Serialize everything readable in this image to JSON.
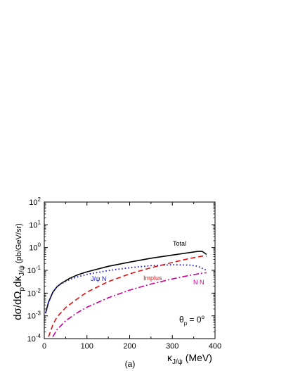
{
  "chart_data": {
    "type": "line",
    "xlabel": {
      "main": "κ",
      "sub": "J/ψ",
      "tail": " (MeV)"
    },
    "ylabel": {
      "main": "dσ/dΩ",
      "sub1": "p",
      "mid": "dκ",
      "sub2": "J/ψ",
      "tail": " (pb/GeV/sr)"
    },
    "xlim": [
      0,
      400
    ],
    "ylim": [
      0.0001,
      100
    ],
    "yscale": "log",
    "x_ticks": [
      0,
      100,
      200,
      300,
      400
    ],
    "y_ticks": [
      {
        "value": 100,
        "base": "10",
        "exp": "2"
      },
      {
        "value": 10,
        "base": "10",
        "exp": "1"
      },
      {
        "value": 1,
        "base": "10",
        "exp": "0"
      },
      {
        "value": 0.1,
        "base": "10",
        "exp": "-1"
      },
      {
        "value": 0.01,
        "base": "10",
        "exp": "-2"
      },
      {
        "value": 0.001,
        "base": "10",
        "exp": "-3"
      },
      {
        "value": 0.0001,
        "base": "10",
        "exp": "-4"
      }
    ],
    "series": [
      {
        "name": "Total",
        "color": "#000000",
        "style": "solid",
        "x": [
          3,
          10,
          20,
          30,
          40,
          60,
          80,
          100,
          150,
          200,
          250,
          300,
          340,
          360,
          370,
          380
        ],
        "y": [
          0.0013,
          0.004,
          0.011,
          0.019,
          0.027,
          0.045,
          0.065,
          0.086,
          0.15,
          0.23,
          0.34,
          0.47,
          0.6,
          0.68,
          0.68,
          0.5
        ]
      },
      {
        "name": "J/ψ N",
        "color": "#1a1acc",
        "style": "dotted",
        "x": [
          3,
          10,
          20,
          30,
          40,
          60,
          80,
          100,
          150,
          200,
          250,
          300,
          340,
          360,
          380
        ],
        "y": [
          0.0013,
          0.004,
          0.011,
          0.019,
          0.026,
          0.04,
          0.053,
          0.066,
          0.098,
          0.13,
          0.16,
          0.175,
          0.17,
          0.15,
          0.1
        ]
      },
      {
        "name": "Implus",
        "color": "#e01010",
        "style": "dashed",
        "x": [
          10,
          20,
          30,
          50,
          75,
          100,
          150,
          200,
          250,
          300,
          340,
          370,
          380
        ],
        "y": [
          0.00012,
          0.0004,
          0.0009,
          0.0023,
          0.0052,
          0.011,
          0.032,
          0.07,
          0.13,
          0.22,
          0.33,
          0.42,
          0.42
        ]
      },
      {
        "name": "N N",
        "color": "#cc0099",
        "style": "dashdot",
        "x": [
          20,
          30,
          50,
          75,
          100,
          150,
          200,
          250,
          300,
          340,
          370,
          380
        ],
        "y": [
          0.00012,
          0.00025,
          0.0006,
          0.0013,
          0.0024,
          0.0062,
          0.0135,
          0.025,
          0.042,
          0.06,
          0.075,
          0.078
        ]
      }
    ],
    "annotations": {
      "total": "Total",
      "jpsin_main": "J/ψ N",
      "implus": "Implus",
      "nn": "N N",
      "theta_main": "θ",
      "theta_sub": "p",
      "theta_eq": " = 0",
      "theta_sup": "o"
    },
    "panel_label": "(a)"
  }
}
